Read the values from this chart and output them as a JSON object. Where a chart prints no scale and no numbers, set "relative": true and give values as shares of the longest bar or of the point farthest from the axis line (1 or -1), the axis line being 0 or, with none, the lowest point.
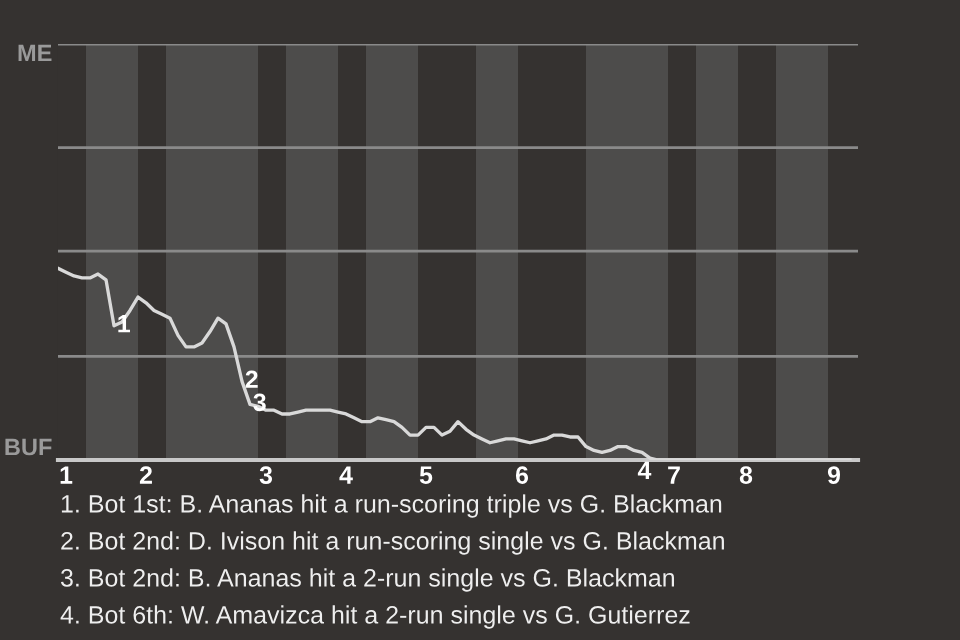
{
  "chart_data": {
    "type": "line",
    "relative": true,
    "categories": [
      null,
      "1",
      null,
      null,
      null,
      null,
      null,
      null,
      null,
      null,
      null,
      "2",
      null,
      null,
      null,
      null,
      null,
      null,
      null,
      null,
      null,
      null,
      null,
      null,
      null,
      null,
      "3",
      null,
      null,
      null,
      null,
      null,
      null,
      null,
      null,
      null,
      "4",
      null,
      null,
      null,
      null,
      null,
      null,
      null,
      null,
      null,
      "5",
      null,
      null,
      null,
      null,
      null,
      null,
      null,
      null,
      null,
      null,
      null,
      "6",
      null,
      null,
      null,
      null,
      null,
      null,
      null,
      null,
      null,
      null,
      null,
      null,
      null,
      null,
      null,
      null,
      null,
      null,
      "7",
      null,
      null,
      null,
      null,
      null,
      null,
      null,
      null,
      "8",
      null,
      null,
      null,
      null,
      null,
      null,
      null,
      null,
      null,
      null,
      "9",
      null,
      null
    ],
    "series": [
      {
        "color": "#d9d9d9",
        "values": [
          1.0,
          0.98,
          0.96,
          0.95,
          0.95,
          0.97,
          0.94,
          0.7,
          0.72,
          0.78,
          0.85,
          0.82,
          0.78,
          0.76,
          0.74,
          0.65,
          0.59,
          0.59,
          0.61,
          0.67,
          0.74,
          0.71,
          0.59,
          0.41,
          0.29,
          0.28,
          0.26,
          0.26,
          0.24,
          0.24,
          0.25,
          0.26,
          0.26,
          0.26,
          0.26,
          0.25,
          0.24,
          0.22,
          0.2,
          0.2,
          0.22,
          0.21,
          0.2,
          0.17,
          0.13,
          0.13,
          0.17,
          0.17,
          0.13,
          0.15,
          0.2,
          0.16,
          0.13,
          0.11,
          0.09,
          0.1,
          0.11,
          0.11,
          0.1,
          0.09,
          0.1,
          0.11,
          0.13,
          0.13,
          0.12,
          0.12,
          0.07,
          0.05,
          0.04,
          0.05,
          0.07,
          0.07,
          0.05,
          0.04,
          0.01,
          0,
          0,
          0,
          0,
          0,
          0,
          0,
          0,
          0,
          0,
          0,
          0,
          0,
          0,
          0,
          0,
          0,
          0,
          0,
          0,
          0,
          0,
          0,
          0,
          0
        ]
      }
    ],
    "marker": "none",
    "line_style": "solid",
    "ref_lines": [
      {
        "axis": "y",
        "value": 0.54,
        "color": "#8a8a8a"
      },
      {
        "axis": "y",
        "value": 1.09,
        "color": "#8a8a8a"
      },
      {
        "axis": "y",
        "value": 1.63,
        "color": "#8a8a8a"
      },
      {
        "axis": "y",
        "value": 2.17,
        "color": "#8a8a8a"
      }
    ],
    "annotations": [
      "ME",
      "BUF",
      {
        "text": "1",
        "y": 0.7
      },
      {
        "text": "2",
        "y": 0.41
      },
      {
        "text": "3",
        "y": 0.29
      },
      {
        "text": "4",
        "y": 0.01
      },
      "1. Bot 1st: B. Ananas hit a run-scoring triple vs G. Blackman",
      "2. Bot 2nd: D. Ivison hit a run-scoring single vs G. Blackman",
      "3. Bot 2nd: B. Ananas hit a 2-run single vs G. Blackman",
      "4. Bot 6th: W. Amavizca hit a 2-run single vs G. Gutierrez"
    ]
  }
}
